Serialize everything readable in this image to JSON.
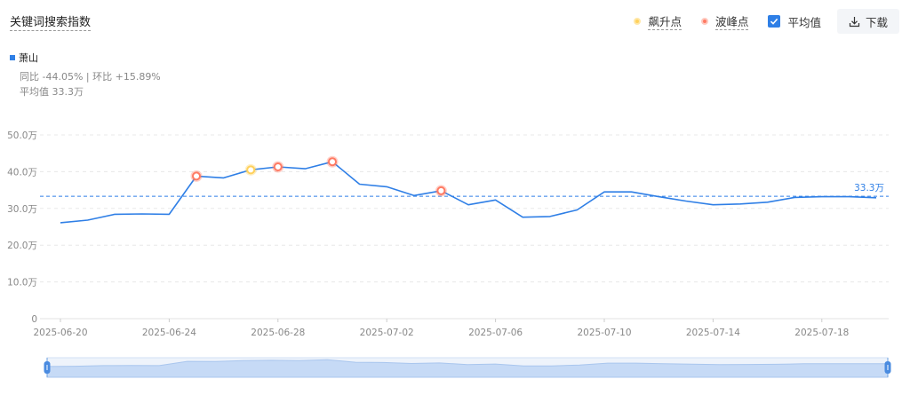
{
  "title": "关键词搜索指数",
  "legend": {
    "rise_label": "飙升点",
    "peak_label": "波峰点",
    "avg_label": "平均值"
  },
  "download_label": "下载",
  "series_name": "萧山",
  "stats": {
    "compare": "同比 -44.05% | 环比 +15.89%",
    "average": "平均值 33.3万"
  },
  "colors": {
    "line": "#2f7fe6",
    "rise": "#ffd15c",
    "peak": "#ff7a63",
    "avg": "#2f7fe6"
  },
  "chart_data": {
    "type": "line",
    "ylim": [
      0,
      500000
    ],
    "yticks": [
      {
        "v": 0,
        "label": "0"
      },
      {
        "v": 100000,
        "label": "10.0万"
      },
      {
        "v": 200000,
        "label": "20.0万"
      },
      {
        "v": 300000,
        "label": "30.0万"
      },
      {
        "v": 400000,
        "label": "40.0万"
      },
      {
        "v": 500000,
        "label": "50.0万"
      }
    ],
    "x": [
      "2025-06-20",
      "2025-06-21",
      "2025-06-22",
      "2025-06-23",
      "2025-06-24",
      "2025-06-25",
      "2025-06-26",
      "2025-06-27",
      "2025-06-28",
      "2025-06-29",
      "2025-06-30",
      "2025-07-01",
      "2025-07-02",
      "2025-07-03",
      "2025-07-04",
      "2025-07-05",
      "2025-07-06",
      "2025-07-07",
      "2025-07-08",
      "2025-07-09",
      "2025-07-10",
      "2025-07-11",
      "2025-07-12",
      "2025-07-13",
      "2025-07-14",
      "2025-07-15",
      "2025-07-16",
      "2025-07-17",
      "2025-07-18",
      "2025-07-19",
      "2025-07-20"
    ],
    "xtick_labels": [
      "2025-06-20",
      "2025-06-24",
      "2025-06-28",
      "2025-07-02",
      "2025-07-06",
      "2025-07-10",
      "2025-07-14",
      "2025-07-18"
    ],
    "values": [
      261000,
      268000,
      284000,
      285000,
      284000,
      388000,
      383000,
      405000,
      413000,
      408000,
      427000,
      366000,
      359000,
      335000,
      348000,
      310000,
      323000,
      276000,
      278000,
      296000,
      345000,
      345000,
      332000,
      320000,
      310000,
      312000,
      317000,
      330000,
      332000,
      332000,
      329000
    ],
    "rise_points": [
      "2025-06-27"
    ],
    "peak_points": [
      "2025-06-25",
      "2025-06-28",
      "2025-06-30",
      "2025-07-04"
    ],
    "average": 333000,
    "average_label": "33.3万",
    "grid": true
  }
}
